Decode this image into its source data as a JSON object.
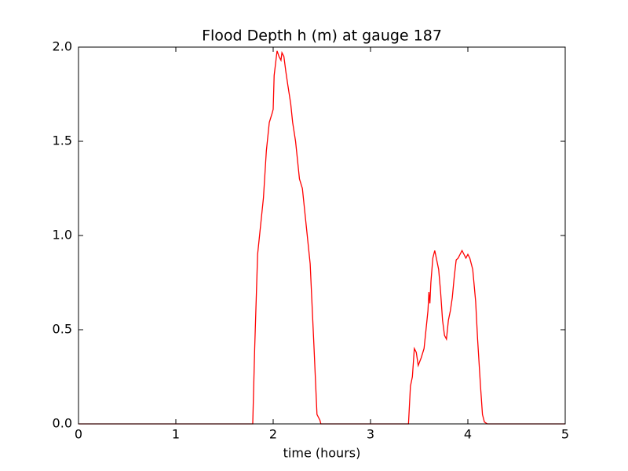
{
  "chart_data": {
    "type": "line",
    "title": "Flood Depth h (m) at gauge 187",
    "xlabel": "time (hours)",
    "xlim": [
      0,
      5
    ],
    "xticks": [
      0,
      1,
      2,
      3,
      4,
      5
    ],
    "ylim": [
      0,
      2
    ],
    "yticks": [
      {
        "value": 0,
        "label": "0.0"
      },
      0.5,
      {
        "value": 1,
        "label": "1.0"
      },
      1.5,
      {
        "value": 2,
        "label": "2.0"
      }
    ],
    "grid": false,
    "series": [
      {
        "color": "#ff0000",
        "x": [
          0,
          1.79,
          1.81,
          1.84,
          1.87,
          1.9,
          1.93,
          1.96,
          1.99,
          2.0,
          2.01,
          2.04,
          2.06,
          2.08,
          2.09,
          2.11,
          2.13,
          2.15,
          2.18,
          2.2,
          2.23,
          2.27,
          2.3,
          2.34,
          2.38,
          2.42,
          2.45,
          2.48,
          2.49,
          3.39,
          3.41,
          3.43,
          3.45,
          3.47,
          3.49,
          3.52,
          3.55,
          3.57,
          3.59,
          3.6,
          3.61,
          3.62,
          3.64,
          3.66,
          3.68,
          3.7,
          3.72,
          3.74,
          3.76,
          3.78,
          3.8,
          3.82,
          3.84,
          3.86,
          3.88,
          3.9,
          3.92,
          3.94,
          3.96,
          3.98,
          4.0,
          4.02,
          4.05,
          4.08,
          4.1,
          4.13,
          4.15,
          4.17,
          4.2,
          5
        ],
        "values": [
          0,
          0,
          0.4,
          0.9,
          1.05,
          1.2,
          1.45,
          1.6,
          1.65,
          1.67,
          1.85,
          1.98,
          1.95,
          1.93,
          1.97,
          1.95,
          1.87,
          1.8,
          1.7,
          1.6,
          1.5,
          1.3,
          1.25,
          1.05,
          0.85,
          0.4,
          0.05,
          0.02,
          0,
          0,
          0.2,
          0.25,
          0.4,
          0.38,
          0.31,
          0.35,
          0.4,
          0.5,
          0.6,
          0.7,
          0.64,
          0.75,
          0.88,
          0.92,
          0.87,
          0.82,
          0.7,
          0.55,
          0.47,
          0.45,
          0.55,
          0.6,
          0.67,
          0.78,
          0.87,
          0.88,
          0.9,
          0.92,
          0.9,
          0.88,
          0.9,
          0.88,
          0.82,
          0.65,
          0.45,
          0.2,
          0.05,
          0.01,
          0,
          0
        ]
      }
    ]
  }
}
